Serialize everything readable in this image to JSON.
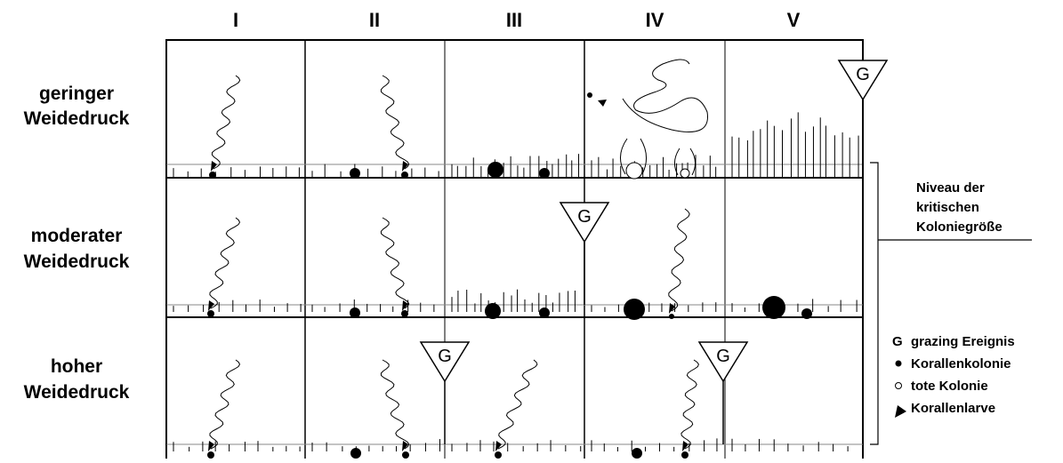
{
  "columns": [
    "I",
    "II",
    "III",
    "IV",
    "V"
  ],
  "rows": [
    [
      "geringer",
      "Weidedruck"
    ],
    [
      "moderater",
      "Weidedruck"
    ],
    [
      "hoher",
      "Weidedruck"
    ]
  ],
  "grazing_markers": [
    "G",
    "G",
    "G",
    "G"
  ],
  "critical_level": [
    "Niveau der",
    "kritischen",
    "Koloniegröße"
  ],
  "legend": {
    "grazing": {
      "symbol": "G",
      "text": "grazing Ereignis"
    },
    "colony": "Korallenkolonie",
    "dead_colony": "tote Kolonie",
    "larva": "Korallenlarve"
  }
}
